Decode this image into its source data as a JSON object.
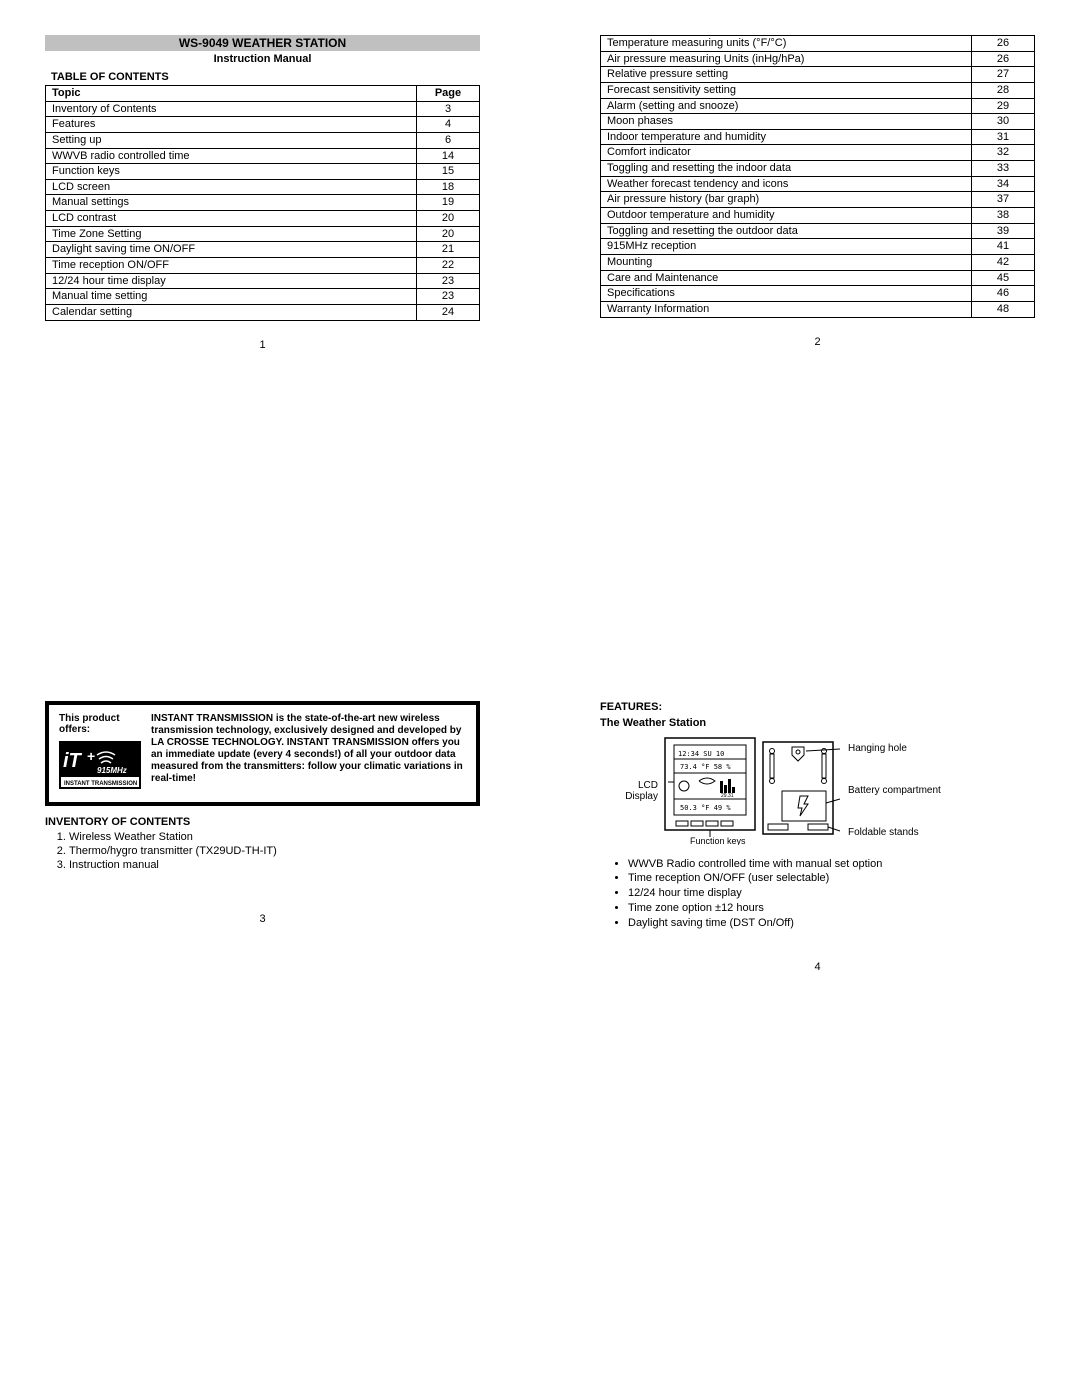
{
  "page1": {
    "title": "WS-9049 WEATHER STATION",
    "subtitle": "Instruction Manual",
    "toc_heading": "TABLE OF CONTENTS",
    "header_topic": "Topic",
    "header_page": "Page",
    "rows": [
      {
        "topic": "Inventory of Contents",
        "page": "3"
      },
      {
        "topic": "Features",
        "page": "4"
      },
      {
        "topic": "Setting up",
        "page": "6"
      },
      {
        "topic": "WWVB radio controlled time",
        "page": "14"
      },
      {
        "topic": "Function keys",
        "page": "15"
      },
      {
        "topic": "LCD screen",
        "page": "18"
      },
      {
        "topic": "Manual settings",
        "page": "19"
      },
      {
        "topic": "LCD contrast",
        "page": "20"
      },
      {
        "topic": "Time Zone Setting",
        "page": "20"
      },
      {
        "topic": "Daylight saving time ON/OFF",
        "page": "21"
      },
      {
        "topic": "Time reception ON/OFF",
        "page": "22"
      },
      {
        "topic": "12/24 hour time display",
        "page": "23"
      },
      {
        "topic": "Manual time setting",
        "page": "23"
      },
      {
        "topic": "Calendar setting",
        "page": "24"
      }
    ],
    "page_num": "1"
  },
  "page2": {
    "rows": [
      {
        "topic": "Temperature measuring units (°F/°C)",
        "page": "26"
      },
      {
        "topic": "Air pressure measuring Units (inHg/hPa)",
        "page": "26"
      },
      {
        "topic": "Relative pressure setting",
        "page": "27"
      },
      {
        "topic": "Forecast sensitivity setting",
        "page": "28"
      },
      {
        "topic": "Alarm (setting and snooze)",
        "page": "29"
      },
      {
        "topic": "Moon phases",
        "page": "30"
      },
      {
        "topic": "Indoor temperature and humidity",
        "page": "31"
      },
      {
        "topic": "Comfort indicator",
        "page": "32"
      },
      {
        "topic": "Toggling and resetting the indoor data",
        "page": "33"
      },
      {
        "topic": "Weather forecast tendency and icons",
        "page": "34"
      },
      {
        "topic": "Air pressure history (bar graph)",
        "page": "37"
      },
      {
        "topic": "Outdoor temperature and humidity",
        "page": "38"
      },
      {
        "topic": "Toggling and resetting the outdoor data",
        "page": "39"
      },
      {
        "topic": "915MHz reception",
        "page": "41"
      },
      {
        "topic": "Mounting",
        "page": "42"
      },
      {
        "topic": "Care and Maintenance",
        "page": "45"
      },
      {
        "topic": "Specifications",
        "page": "46"
      },
      {
        "topic": "Warranty Information",
        "page": "48"
      }
    ],
    "page_num": "2"
  },
  "page3": {
    "offers_label": "This product offers:",
    "blurb": "INSTANT TRANSMISSION is the state-of-the-art new wireless transmission technology, exclusively designed and developed by LA CROSSE TECHNOLOGY. INSTANT TRANSMISSION offers you an immediate update (every 4 seconds!) of all your outdoor data measured from the transmitters: follow your climatic variations in real-time!",
    "inv_heading": "INVENTORY OF CONTENTS",
    "inv_items": [
      "Wireless Weather Station",
      "Thermo/hygro transmitter (TX29UD-TH-IT)",
      "Instruction manual"
    ],
    "page_num": "3"
  },
  "page4": {
    "features_heading": "FEATURES:",
    "sub_heading": "The Weather Station",
    "labels": {
      "lcd": "LCD Display",
      "fk": "Function keys",
      "hang": "Hanging hole",
      "batt": "Battery compartment",
      "fold": "Foldable stands"
    },
    "bullets": [
      "WWVB Radio controlled time with manual set option",
      "Time reception ON/OFF (user selectable)",
      "12/24 hour time display",
      "Time zone option ±12 hours",
      "Daylight saving time (DST On/Off)"
    ],
    "page_num": "4"
  },
  "logo": {
    "text1": "iT+",
    "text2": "915MHz",
    "text3": "INSTANT TRANSMISSION"
  }
}
